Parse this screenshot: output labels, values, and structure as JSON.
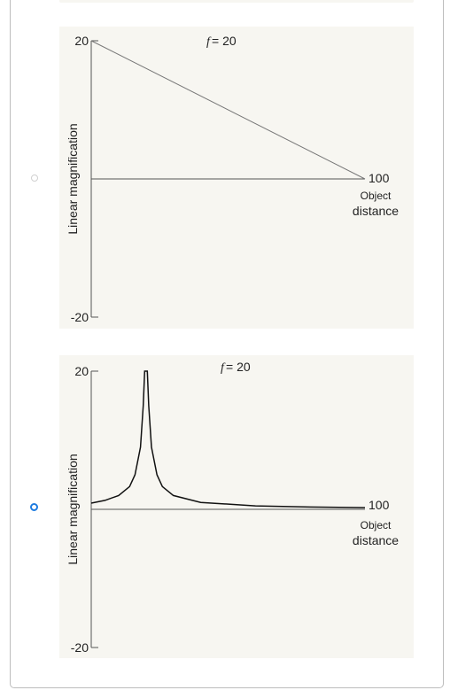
{
  "options": [
    {
      "selected": false,
      "chart_data": {
        "type": "line",
        "annotation_f": "f",
        "annotation_value": "= 20",
        "ylabel": "Linear magnification",
        "xlabel_line1": "Object",
        "xlabel_line2": "distance",
        "ytick_top": "20",
        "ytick_bottom": "-20",
        "xtick_end": "100",
        "xlim": [
          0,
          100
        ],
        "ylim": [
          -20,
          20
        ],
        "series": [
          {
            "x": [
              0,
              100
            ],
            "y": [
              20,
              0
            ]
          }
        ]
      }
    },
    {
      "selected": true,
      "chart_data": {
        "type": "line",
        "annotation_f": "f",
        "annotation_value": "= 20",
        "ylabel": "Linear magnification",
        "xlabel_line1": "Object",
        "xlabel_line2": "distance",
        "ytick_top": "20",
        "ytick_bottom": "-20",
        "xtick_end": "100",
        "xlim": [
          0,
          100
        ],
        "ylim": [
          -20,
          20
        ],
        "series": [
          {
            "x": [
              0,
              5,
              10,
              14,
              16,
              18,
              19,
              19.5,
              20,
              20.5,
              21,
              22,
              24,
              26,
              30,
              40,
              60,
              80,
              100
            ],
            "y": [
              0.9,
              1.3,
              2.0,
              3.3,
              5.0,
              9.0,
              15.0,
              20.0,
              20.0,
              20.0,
              15.0,
              9.0,
              5.0,
              3.3,
              2.0,
              1.0,
              0.5,
              0.33,
              0.25
            ]
          }
        ]
      }
    }
  ]
}
